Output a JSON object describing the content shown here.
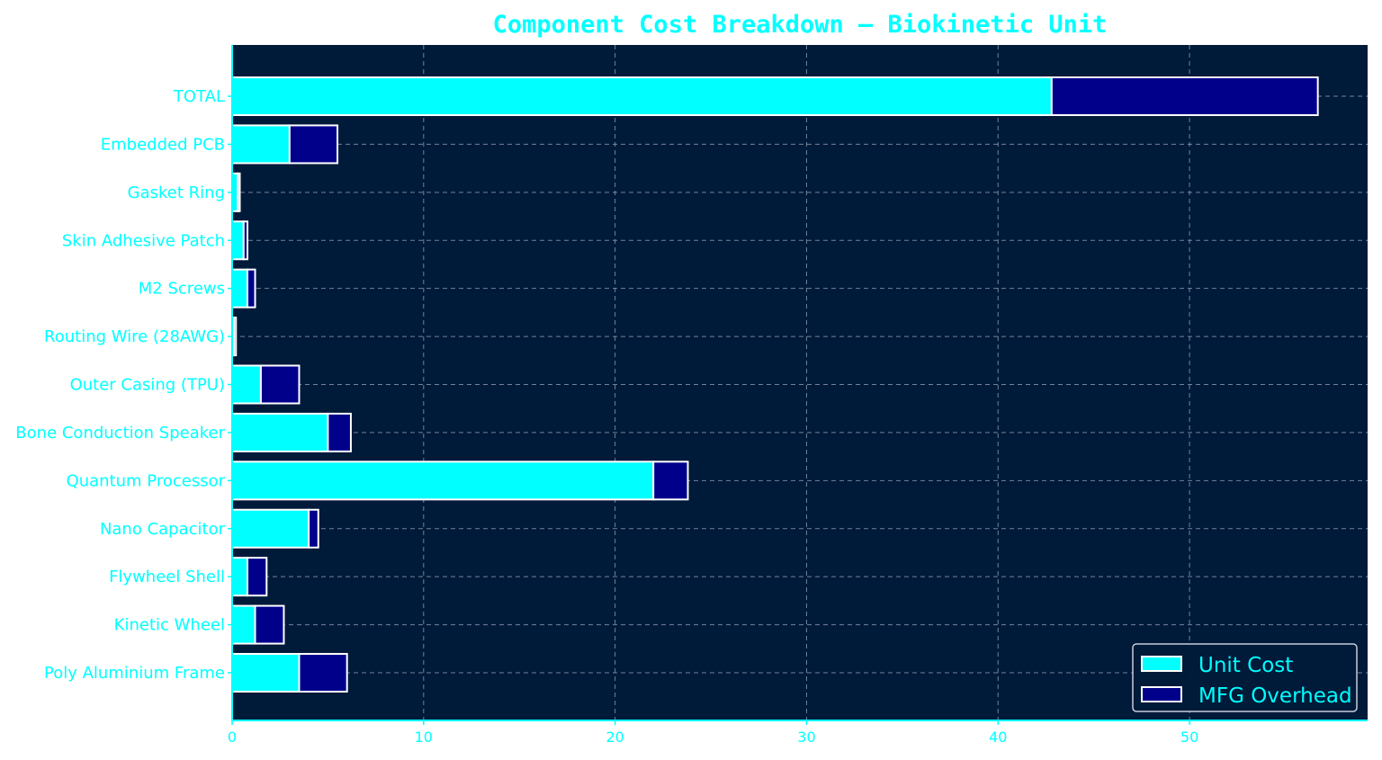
{
  "chart_data": {
    "type": "bar",
    "orientation": "horizontal",
    "stacked": true,
    "title": "Component Cost Breakdown — Biokinetic Unit",
    "xlabel": "",
    "ylabel": "",
    "xlim": [
      0,
      59.3
    ],
    "xticks": [
      0,
      10,
      20,
      30,
      40,
      50
    ],
    "grid": true,
    "legend_position": "lower-right",
    "categories": [
      "Poly Aluminium Frame",
      "Kinetic Wheel",
      "Flywheel Shell",
      "Nano Capacitor",
      "Quantum Processor",
      "Bone Conduction Speaker",
      "Outer Casing (TPU)",
      "Routing Wire (28AWG)",
      "M2 Screws",
      "Skin Adhesive Patch",
      "Gasket Ring",
      "Embedded PCB",
      "TOTAL"
    ],
    "series": [
      {
        "name": "Unit Cost",
        "color": "#00ffff",
        "values": [
          3.5,
          1.2,
          0.8,
          4.0,
          22.0,
          5.0,
          1.5,
          0.1,
          0.8,
          0.6,
          0.3,
          3.0,
          42.8
        ]
      },
      {
        "name": "MFG Overhead",
        "color": "#00008b",
        "values": [
          2.5,
          1.5,
          1.0,
          0.5,
          1.8,
          1.2,
          2.0,
          0.1,
          0.4,
          0.2,
          0.1,
          2.5,
          13.9
        ]
      }
    ],
    "colors": {
      "figure_background": "#ffffff",
      "plot_background": "#001a3a",
      "text": "#00ffff",
      "bar_edge": "#ffffff",
      "grid": "#9aa6b8",
      "axis": "#00ffff"
    }
  }
}
